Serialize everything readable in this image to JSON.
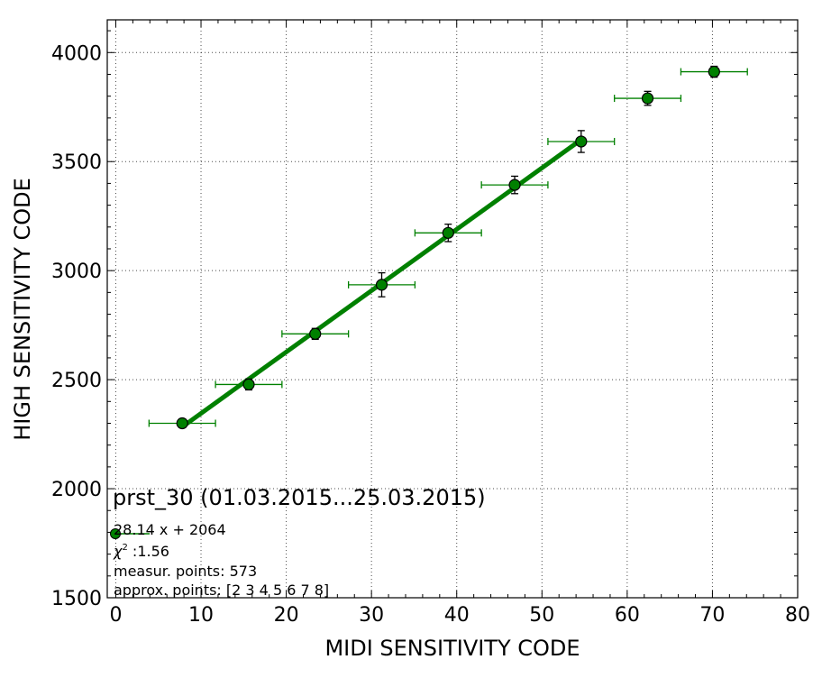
{
  "chart_data": {
    "type": "scatter",
    "xlabel": "MIDI SENSITIVITY CODE",
    "ylabel": "HIGH SENSITIVITY CODE",
    "xlim": [
      -1,
      80
    ],
    "ylim": [
      1500,
      4150
    ],
    "xticks": [
      "0",
      "10",
      "20",
      "30",
      "40",
      "50",
      "60",
      "70",
      "80"
    ],
    "yticks": [
      "1500",
      "2000",
      "2500",
      "3000",
      "3500",
      "4000"
    ],
    "grid": true,
    "colors": {
      "series": "#008000",
      "marker_edge": "#000000"
    },
    "points": [
      {
        "x": 7.8,
        "y": 2300,
        "xerr": 3.9,
        "yerr": 20
      },
      {
        "x": 15.6,
        "y": 2478,
        "xerr": 3.9,
        "yerr": 25
      },
      {
        "x": 23.4,
        "y": 2710,
        "xerr": 3.9,
        "yerr": 25
      },
      {
        "x": 31.2,
        "y": 2935,
        "xerr": 3.9,
        "yerr": 55
      },
      {
        "x": 39.0,
        "y": 3173,
        "xerr": 3.9,
        "yerr": 40
      },
      {
        "x": 46.8,
        "y": 3393,
        "xerr": 3.9,
        "yerr": 40
      },
      {
        "x": 54.6,
        "y": 3592,
        "xerr": 3.9,
        "yerr": 50
      },
      {
        "x": 62.4,
        "y": 3790,
        "xerr": 3.9,
        "yerr": 32
      },
      {
        "x": 70.2,
        "y": 3912,
        "xerr": 3.9,
        "yerr": 25
      }
    ],
    "fit": {
      "slope": 28.14,
      "intercept": 2064,
      "x_range": [
        7.8,
        54.6
      ]
    },
    "annotation": {
      "title": "prst_30 (01.03.2015...25.03.2015)",
      "fit_text": "28.14 x + 2064",
      "chi_label": "χ",
      "chi_exp": "2",
      "chi_value": " :1.56",
      "measur_points": "measur. points: 573",
      "approx_points": "approx. points: [2 3 4 5 6 7 8]"
    }
  }
}
